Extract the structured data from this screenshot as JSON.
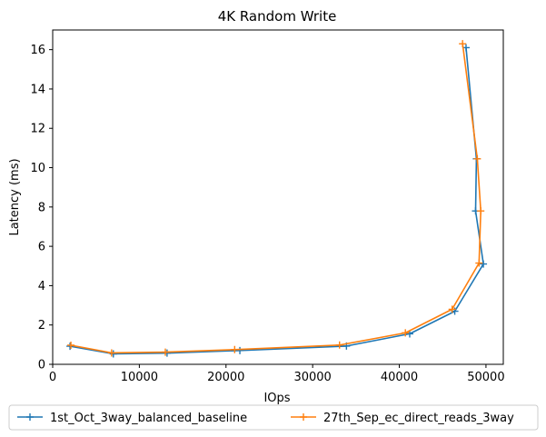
{
  "chart_data": {
    "type": "line",
    "title": "4K  Random Write",
    "xlabel": "IOps",
    "ylabel": "Latency (ms)",
    "xlim": [
      0,
      52000
    ],
    "ylim": [
      0,
      17
    ],
    "xticks": [
      0,
      10000,
      20000,
      30000,
      40000,
      50000
    ],
    "xtick_labels": [
      "0",
      "10000",
      "20000",
      "30000",
      "40000",
      "50000"
    ],
    "yticks": [
      0,
      2,
      4,
      6,
      8,
      10,
      12,
      14,
      16
    ],
    "ytick_labels": [
      "0",
      "2",
      "4",
      "6",
      "8",
      "10",
      "12",
      "14",
      "16"
    ],
    "grid": false,
    "legend_position": "below-center",
    "marker": "plus",
    "series": [
      {
        "name": "1st_Oct_3way_balanced_baseline",
        "color": "#1f77b4",
        "x": [
          2000,
          7000,
          13200,
          21600,
          33900,
          41200,
          46400,
          49700,
          48800,
          48900,
          47700
        ],
        "y": [
          0.92,
          0.53,
          0.57,
          0.7,
          0.93,
          1.55,
          2.7,
          5.1,
          7.8,
          10.45,
          16.1
        ]
      },
      {
        "name": "27th_Sep_ec_direct_reads_3way",
        "color": "#ff7f0e",
        "x": [
          2100,
          6800,
          13000,
          21000,
          33100,
          40700,
          46100,
          49200,
          49400,
          49000,
          47300
        ],
        "y": [
          0.97,
          0.58,
          0.62,
          0.75,
          0.98,
          1.6,
          2.8,
          5.15,
          7.8,
          10.45,
          16.3
        ]
      }
    ]
  }
}
